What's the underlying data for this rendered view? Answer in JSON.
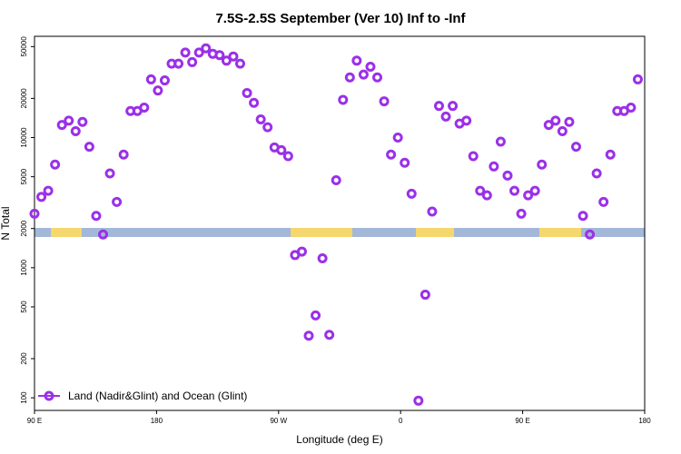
{
  "chart_data": {
    "type": "scatter",
    "title": "7.5S-2.5S September (Ver 10)   Inf to -Inf",
    "xlabel": "Longitude (deg E)",
    "ylabel": "N Total",
    "y_scale": "log",
    "ylim": [
      80,
      60000
    ],
    "y_ticks": [
      {
        "value": 100,
        "label": "100"
      },
      {
        "value": 200,
        "label": "200"
      },
      {
        "value": 500,
        "label": "500"
      },
      {
        "value": 1000,
        "label": "1000"
      },
      {
        "value": 2000,
        "label": "2000"
      },
      {
        "value": 5000,
        "label": "5000"
      },
      {
        "value": 10000,
        "label": "10000"
      },
      {
        "value": 20000,
        "label": "20000"
      },
      {
        "value": 50000,
        "label": "50000"
      }
    ],
    "x_ticks": [
      "90 E",
      "180",
      "90 W",
      "0",
      "90 E",
      "180"
    ],
    "grid": false,
    "legend": {
      "position": "bottom-left",
      "entries": [
        "Land (Nadir&Glint) and Ocean (Glint)"
      ]
    },
    "colors": {
      "series": "#9b30e8",
      "ocean_band": "#a3b8d8",
      "land_band": "#f5d76e"
    },
    "series": [
      {
        "name": "Land (Nadir&Glint) and Ocean (Glint)",
        "points": [
          [
            0,
            2600
          ],
          [
            5,
            3500
          ],
          [
            10,
            3900
          ],
          [
            15,
            6200
          ],
          [
            20,
            12500
          ],
          [
            25,
            13500
          ],
          [
            30,
            11200
          ],
          [
            35,
            13200
          ],
          [
            40,
            8500
          ],
          [
            45,
            2500
          ],
          [
            50,
            1800
          ],
          [
            55,
            5300
          ],
          [
            60,
            3200
          ],
          [
            65,
            7400
          ],
          [
            70,
            16000
          ],
          [
            75,
            16000
          ],
          [
            80,
            17000
          ],
          [
            85,
            28000
          ],
          [
            90,
            23000
          ],
          [
            95,
            27500
          ],
          [
            100,
            37000
          ],
          [
            105,
            37000
          ],
          [
            110,
            45000
          ],
          [
            115,
            38000
          ],
          [
            120,
            45000
          ],
          [
            125,
            48500
          ],
          [
            130,
            44000
          ],
          [
            135,
            43000
          ],
          [
            140,
            39000
          ],
          [
            145,
            42000
          ],
          [
            150,
            37000
          ],
          [
            155,
            22000
          ],
          [
            160,
            18500
          ],
          [
            165,
            13800
          ],
          [
            170,
            12000
          ],
          [
            175,
            8400
          ],
          [
            180,
            8000
          ],
          [
            185,
            7200
          ],
          [
            190,
            1250
          ],
          [
            195,
            1330
          ],
          [
            200,
            300
          ],
          [
            205,
            430
          ],
          [
            210,
            1180
          ],
          [
            215,
            305
          ],
          [
            220,
            4700
          ],
          [
            225,
            19500
          ],
          [
            230,
            29000
          ],
          [
            235,
            39000
          ],
          [
            240,
            30500
          ],
          [
            245,
            35000
          ],
          [
            250,
            29000
          ],
          [
            255,
            19000
          ],
          [
            260,
            7400
          ],
          [
            265,
            10000
          ],
          [
            270,
            6400
          ],
          [
            275,
            3700
          ],
          [
            280,
            95
          ],
          [
            285,
            620
          ],
          [
            290,
            2700
          ],
          [
            295,
            17500
          ],
          [
            300,
            14500
          ],
          [
            305,
            17500
          ],
          [
            310,
            12800
          ],
          [
            315,
            13500
          ],
          [
            320,
            7200
          ],
          [
            325,
            3900
          ],
          [
            330,
            3600
          ],
          [
            335,
            6000
          ],
          [
            340,
            9300
          ],
          [
            345,
            5100
          ],
          [
            350,
            3900
          ],
          [
            355,
            2600
          ],
          [
            360,
            3600
          ],
          [
            365,
            3900
          ],
          [
            370,
            6200
          ],
          [
            375,
            12500
          ],
          [
            380,
            13500
          ],
          [
            385,
            11200
          ],
          [
            390,
            13200
          ],
          [
            395,
            8500
          ],
          [
            400,
            2500
          ],
          [
            405,
            1800
          ],
          [
            410,
            5300
          ],
          [
            415,
            3200
          ],
          [
            420,
            7400
          ],
          [
            425,
            16000
          ],
          [
            430,
            16000
          ],
          [
            435,
            17000
          ],
          [
            440,
            28000
          ]
        ]
      }
    ],
    "xlim": [
      0,
      445
    ]
  }
}
